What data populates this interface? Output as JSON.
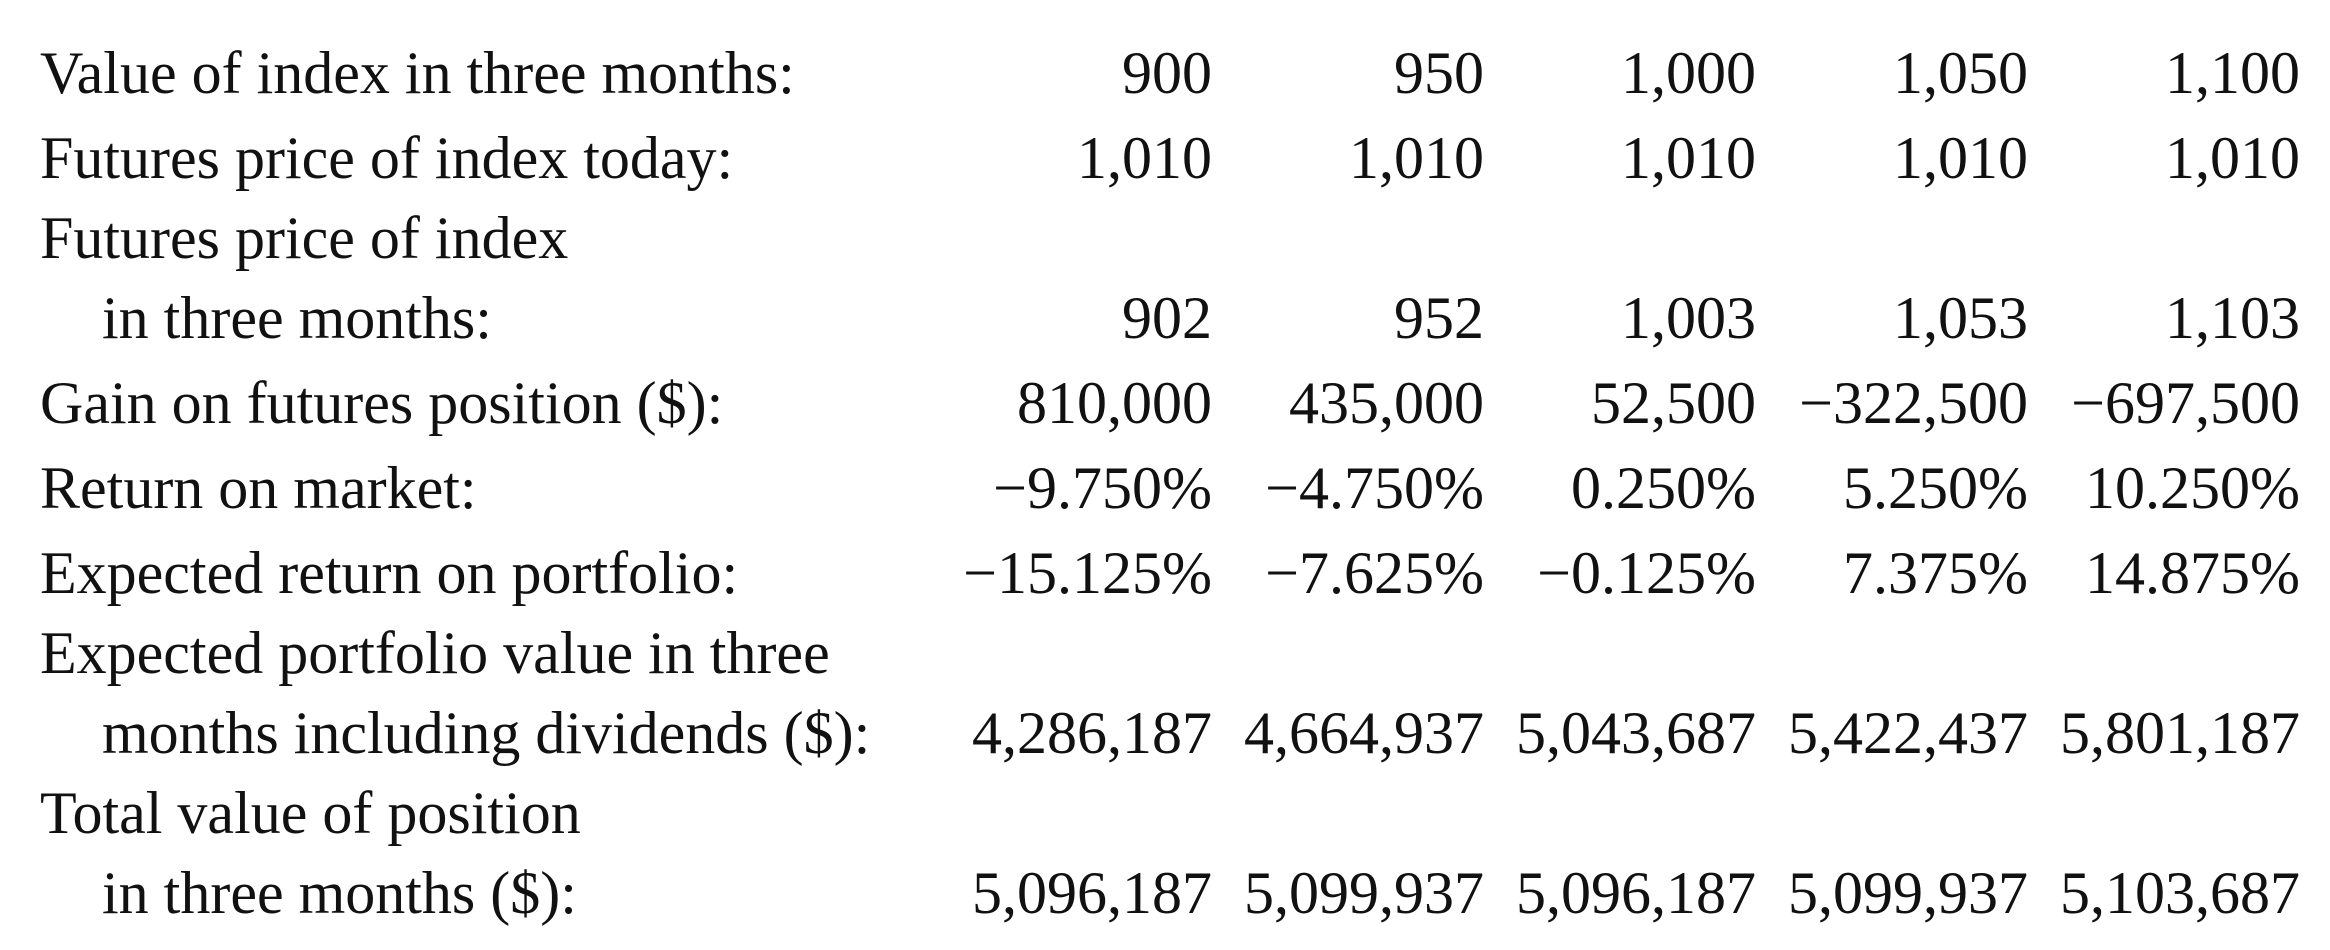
{
  "rows": [
    {
      "label": [
        "Value of index in three months:"
      ],
      "values": [
        "900",
        "950",
        "1,000",
        "1,050",
        "1,100"
      ]
    },
    {
      "label": [
        "Futures price of index today:"
      ],
      "values": [
        "1,010",
        "1,010",
        "1,010",
        "1,010",
        "1,010"
      ]
    },
    {
      "label": [
        "Futures price of index",
        "in three months:"
      ],
      "values": [
        "902",
        "952",
        "1,003",
        "1,053",
        "1,103"
      ]
    },
    {
      "label": [
        "Gain on futures position ($):"
      ],
      "values": [
        "810,000",
        "435,000",
        "52,500",
        "−322,500",
        "−697,500"
      ]
    },
    {
      "label": [
        "Return on market:"
      ],
      "values": [
        "−9.750%",
        "−4.750%",
        "0.250%",
        "5.250%",
        "10.250%"
      ]
    },
    {
      "label": [
        "Expected return on portfolio:"
      ],
      "values": [
        "−15.125%",
        "−7.625%",
        "−0.125%",
        "7.375%",
        "14.875%"
      ]
    },
    {
      "label": [
        "Expected portfolio value in three",
        "months including dividends ($):"
      ],
      "values": [
        "4,286,187",
        "4,664,937",
        "5,043,687",
        "5,422,437",
        "5,801,187"
      ]
    },
    {
      "label": [
        "Total value of position",
        "in three months ($):"
      ],
      "values": [
        "5,096,187",
        "5,099,937",
        "5,096,187",
        "5,099,937",
        "5,103,687"
      ]
    }
  ]
}
